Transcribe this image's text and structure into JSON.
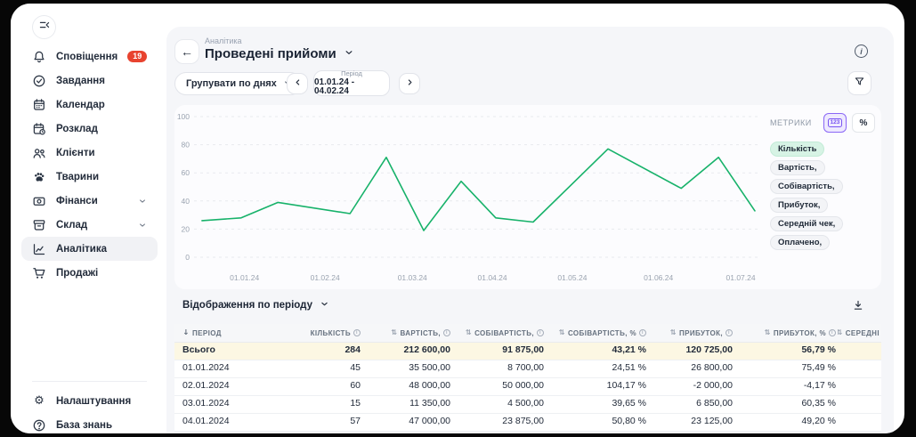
{
  "sidebar": {
    "items": [
      {
        "name": "notifications",
        "label": "Сповіщення",
        "icon": "bell-icon",
        "badge": "19"
      },
      {
        "name": "tasks",
        "label": "Завдання",
        "icon": "check-circle-icon"
      },
      {
        "name": "calendar",
        "label": "Календар",
        "icon": "calendar-icon"
      },
      {
        "name": "schedule",
        "label": "Розклад",
        "icon": "calendar-clock-icon"
      },
      {
        "name": "clients",
        "label": "Клієнти",
        "icon": "people-icon"
      },
      {
        "name": "animals",
        "label": "Тварини",
        "icon": "paw-icon"
      },
      {
        "name": "finance",
        "label": "Фінанси",
        "icon": "wallet-icon",
        "expandable": true
      },
      {
        "name": "stock",
        "label": "Склад",
        "icon": "box-icon",
        "expandable": true
      },
      {
        "name": "analytics",
        "label": "Аналітика",
        "icon": "chart-icon",
        "active": true
      },
      {
        "name": "sales",
        "label": "Продажі",
        "icon": "cart-icon"
      }
    ],
    "footer_items": [
      {
        "name": "settings",
        "label": "Налаштування",
        "icon": "gear-icon"
      },
      {
        "name": "knowledge",
        "label": "База знань",
        "icon": "question-circle-icon"
      }
    ]
  },
  "header": {
    "breadcrumb": "Аналітика",
    "title": "Проведені прийоми"
  },
  "toolbar": {
    "group_by_label": "Групувати по днях",
    "period_label": "Період",
    "period_value": "01.01.24 - 04.02.24"
  },
  "metrics": {
    "title": "МЕТРИКИ",
    "numbers_toggle": "123",
    "percent_toggle": "%",
    "tags": [
      {
        "label": "Кількість",
        "selected": true
      },
      {
        "label": "Вартість,"
      },
      {
        "label": "Собівартість,"
      },
      {
        "label": "Прибуток,"
      },
      {
        "label": "Середній чек,"
      },
      {
        "label": "Оплачено,"
      }
    ]
  },
  "chart_data": {
    "type": "line",
    "series_name": "Кількість",
    "line_color": "#17b26a",
    "grid": true,
    "ylim": [
      0,
      100
    ],
    "yticks": [
      0,
      20,
      40,
      60,
      80,
      100
    ],
    "xticks": [
      {
        "label": "01.01.24",
        "pos": 0.089
      },
      {
        "label": "01.02.24",
        "pos": 0.231
      },
      {
        "label": "01.03.24",
        "pos": 0.385
      },
      {
        "label": "01.04.24",
        "pos": 0.526
      },
      {
        "label": "01.05.24",
        "pos": 0.667
      },
      {
        "label": "01.06.24",
        "pos": 0.819
      },
      {
        "label": "01.07.24",
        "pos": 0.964
      }
    ],
    "points": [
      {
        "pos": 0.014,
        "value": 26
      },
      {
        "pos": 0.083,
        "value": 28
      },
      {
        "pos": 0.148,
        "value": 39
      },
      {
        "pos": 0.275,
        "value": 31
      },
      {
        "pos": 0.339,
        "value": 71
      },
      {
        "pos": 0.405,
        "value": 19
      },
      {
        "pos": 0.471,
        "value": 54
      },
      {
        "pos": 0.532,
        "value": 28
      },
      {
        "pos": 0.598,
        "value": 25
      },
      {
        "pos": 0.73,
        "value": 77
      },
      {
        "pos": 0.859,
        "value": 49
      },
      {
        "pos": 0.925,
        "value": 71
      },
      {
        "pos": 0.989,
        "value": 33
      }
    ]
  },
  "table": {
    "section_label": "Відображення по періоду",
    "columns": [
      {
        "name": "period",
        "label": "ПЕРІОД",
        "sorted": true
      },
      {
        "name": "quantity",
        "label": "КІЛЬКІСТЬ",
        "sortable": true,
        "info": true
      },
      {
        "name": "cost",
        "label": "ВАРТІСТЬ,",
        "sortable": true,
        "info": true
      },
      {
        "name": "cost-price",
        "label": "СОБІВАРТІСТЬ,",
        "sortable": true,
        "info": true
      },
      {
        "name": "cost-price-pct",
        "label": "СОБІВАРТІСТЬ, %",
        "sortable": true,
        "info": true
      },
      {
        "name": "profit",
        "label": "ПРИБУТОК,",
        "sortable": true,
        "info": true
      },
      {
        "name": "profit-pct",
        "label": "ПРИБУТОК, %",
        "sortable": true,
        "info": true
      },
      {
        "name": "average",
        "label": "СЕРЕДНІ",
        "sortable": true
      }
    ],
    "total_row": {
      "period": "Всього",
      "values": [
        "284",
        "212 600,00",
        "91 875,00",
        "43,21 %",
        "120 725,00",
        "56,79 %",
        ""
      ]
    },
    "rows": [
      {
        "period": "01.01.2024",
        "values": [
          "45",
          "35 500,00",
          "8 700,00",
          "24,51 %",
          "26 800,00",
          "75,49 %",
          ""
        ]
      },
      {
        "period": "02.01.2024",
        "values": [
          "60",
          "48 000,00",
          "50 000,00",
          "104,17 %",
          "-2 000,00",
          "-4,17 %",
          ""
        ]
      },
      {
        "period": "03.01.2024",
        "values": [
          "15",
          "11 350,00",
          "4 500,00",
          "39,65 %",
          "6 850,00",
          "60,35 %",
          ""
        ]
      },
      {
        "period": "04.01.2024",
        "values": [
          "57",
          "47 000,00",
          "23 875,00",
          "50,80 %",
          "23 125,00",
          "49,20 %",
          ""
        ]
      }
    ]
  }
}
